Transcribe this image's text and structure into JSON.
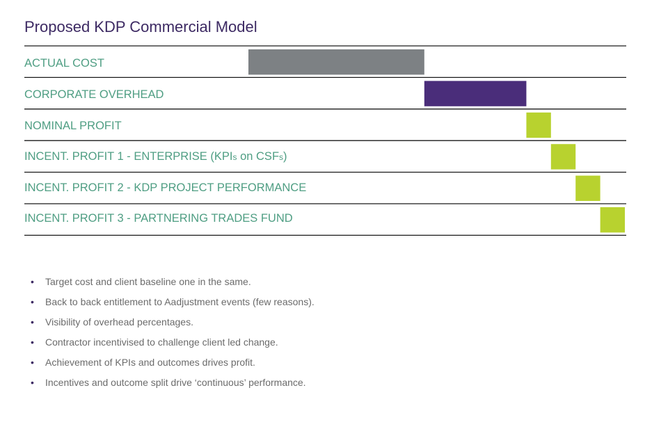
{
  "page": {
    "title": "Proposed KDP Commercial Model",
    "bullets": [
      "Target cost and client baseline one in the same.",
      "Back to back entitlement to Aadjustment events (few reasons).",
      "Visibility of overhead percentages.",
      "Contractor incentivised to challenge client led change.",
      "Achievement of KPIs and outcomes drives profit.",
      "Incentives and outcome split drive ‘continuous’ performance."
    ]
  },
  "chart_data": {
    "type": "bar",
    "subtype": "waterfall",
    "title": "Proposed KDP Commercial Model",
    "categories": [
      "ACTUAL COST",
      "CORPORATE OVERHEAD",
      "NOMINAL PROFIT",
      "INCENT. PROFIT 1 - ENTERPRISE (KPIs on CSFs)",
      "INCENT. PROFIT 2 - KDP PROJECT PERFORMANCE",
      "INCENT. PROFIT 3 - PARTNERING TRADES FUND"
    ],
    "label_parts": {
      "kpi_prefix": "INCENT. PROFIT 1 - ENTERPRISE (KPI",
      "kpi_s1": "s",
      "kpi_mid": " on CSF",
      "kpi_s2": "s",
      "kpi_suffix": ")"
    },
    "bars": [
      {
        "start": 0,
        "end": 50,
        "color": "#7d8184"
      },
      {
        "start": 50,
        "end": 79,
        "color": "#4a2d7a"
      },
      {
        "start": 79,
        "end": 86,
        "color": "#b8d22f"
      },
      {
        "start": 86,
        "end": 93,
        "color": "#b8d22f"
      },
      {
        "start": 93,
        "end": 100,
        "color": "#b8d22f"
      },
      {
        "start": 100,
        "end": 107,
        "color": "#b8d22f"
      }
    ],
    "xlim": [
      0,
      107
    ],
    "colors": {
      "label": "#4f9e83",
      "line": "#1a1a1a",
      "title": "#3d2a63"
    }
  }
}
